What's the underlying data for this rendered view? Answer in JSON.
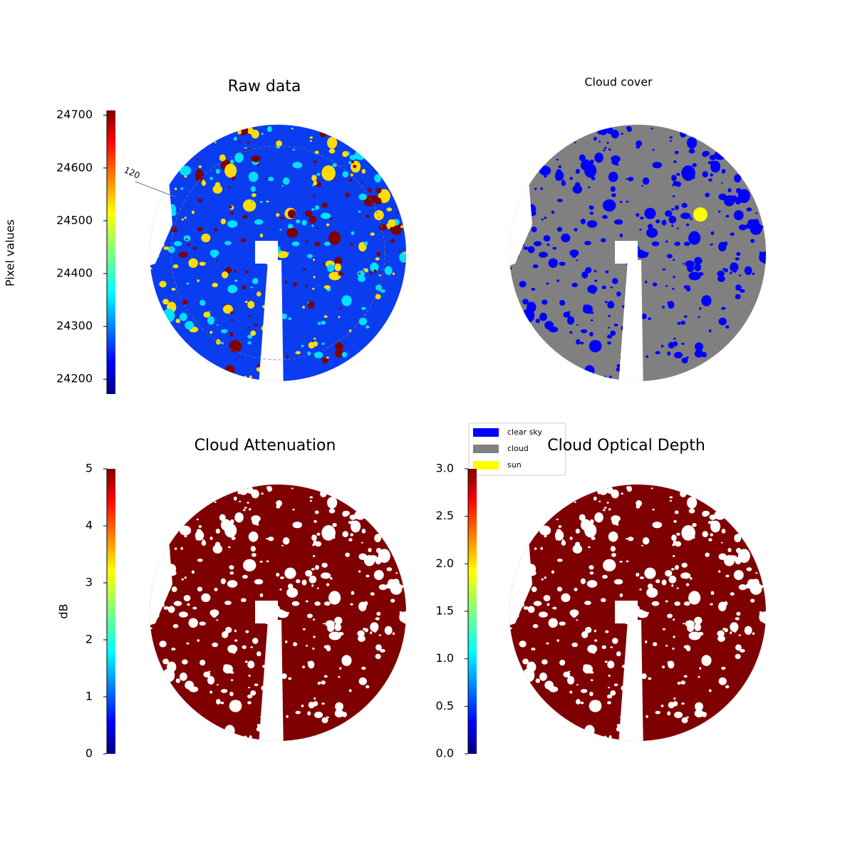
{
  "chart_data": [
    {
      "type": "image",
      "title": "Raw data",
      "annotation": "120",
      "colorbar": {
        "label": "Pixel values",
        "colormap": "jet",
        "lim": [
          24172,
          24709
        ],
        "ticks": [
          24200,
          24300,
          24400,
          24500,
          24600,
          24700
        ]
      }
    },
    {
      "type": "image",
      "title": "Cloud cover",
      "legend": [
        {
          "name": "clear sky",
          "color": "#0000ff"
        },
        {
          "name": "cloud",
          "color": "#808080"
        },
        {
          "name": "sun",
          "color": "#ffff00"
        }
      ]
    },
    {
      "type": "image",
      "title": "Cloud Attenuation",
      "colorbar": {
        "label": "dB",
        "colormap": "jet",
        "lim": [
          0,
          5
        ],
        "ticks": [
          0,
          1,
          2,
          3,
          4,
          5
        ]
      }
    },
    {
      "type": "image",
      "title": "Cloud Optical Depth",
      "colorbar": {
        "colormap": "jet",
        "lim": [
          0,
          3
        ],
        "ticks": [
          {
            "value": 0,
            "label": "0.0"
          },
          {
            "value": 0.5,
            "label": "0.5"
          },
          {
            "value": 1,
            "label": "1.0"
          },
          {
            "value": 1.5,
            "label": "1.5"
          },
          {
            "value": 2,
            "label": "2.0"
          },
          {
            "value": 2.5,
            "label": "2.5"
          },
          {
            "value": 3,
            "label": "3.0"
          }
        ]
      }
    }
  ]
}
